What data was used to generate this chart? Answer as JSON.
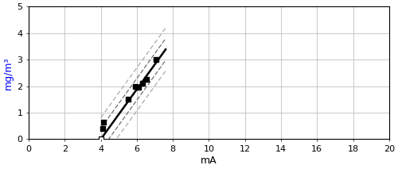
{
  "scatter_filled": [
    [
      4.1,
      0.4
    ],
    [
      4.15,
      0.65
    ],
    [
      5.5,
      1.5
    ],
    [
      5.9,
      2.0
    ],
    [
      6.1,
      1.95
    ],
    [
      6.3,
      2.1
    ],
    [
      6.55,
      2.25
    ],
    [
      7.05,
      3.0
    ]
  ],
  "scatter_open": [
    [
      4.0,
      0.0
    ]
  ],
  "regression_line": {
    "x_start": 4.0,
    "x_end": 7.6,
    "slope": 0.94,
    "intercept": -3.76
  },
  "inner_band": {
    "slope": 0.94,
    "intercept_upper": -3.35,
    "intercept_lower": -4.17
  },
  "outer_band": {
    "slope": 0.94,
    "intercept_upper": -2.95,
    "intercept_lower": -4.57
  },
  "xlim": [
    0,
    20
  ],
  "ylim": [
    0,
    5
  ],
  "xticks": [
    0,
    2,
    4,
    6,
    8,
    10,
    12,
    14,
    16,
    18,
    20
  ],
  "yticks": [
    0,
    1,
    2,
    3,
    4,
    5
  ],
  "xlabel": "mA",
  "ylabel": "mg/m³",
  "ylabel_color": "#0000ff",
  "grid_color": "#c0c0c0",
  "background_color": "#ffffff",
  "line_color": "#000000",
  "band_inner_color": "#606060",
  "band_outer_color": "#a0a0a0",
  "tick_fontsize": 8,
  "label_fontsize": 9
}
